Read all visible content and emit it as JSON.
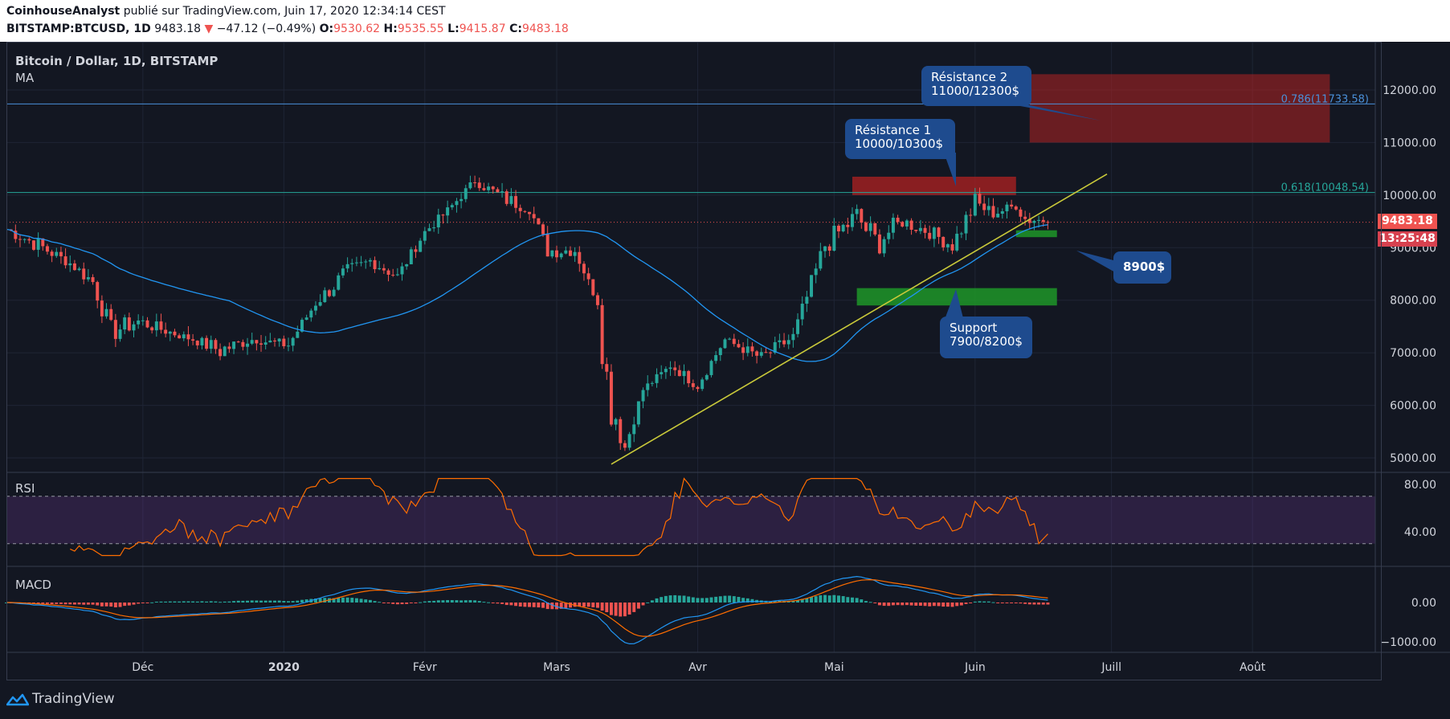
{
  "header": {
    "author": "CoinhouseAnalyst",
    "published": " publié sur TradingView.com, Juin 17, 2020 12:34:14 CEST",
    "symbol": "BITSTAMP:BTCUSD, 1D",
    "price": "9483.18",
    "change": "−47.12 (−0.49%)",
    "o_label": "O:",
    "o": "9530.62",
    "h_label": "H:",
    "h": "9535.55",
    "l_label": "L:",
    "l": "9415.87",
    "c_label": "C:",
    "c": "9483.18"
  },
  "chart_title": "Bitcoin / Dollar, 1D, BITSTAMP",
  "ma_label": "MA",
  "rsi_label": "RSI",
  "macd_label": "MACD",
  "footer": {
    "brand": "TradingView"
  },
  "price_box": {
    "price": "9483.18",
    "countdown": "13:25:48"
  },
  "callouts": {
    "r2": "Résistance 2\n11000/12300$",
    "r1": "Résistance 1\n10000/10300$",
    "support": "Support\n7900/8200$",
    "p8900": "8900$"
  },
  "fib": [
    {
      "label": "0.786(11733.58)",
      "value": 11733.58,
      "color": "#4a90d9"
    },
    {
      "label": "0.618(10048.54)",
      "value": 10048.54,
      "color": "#26a69a"
    }
  ],
  "colors": {
    "up": "#26a69a",
    "down": "#ef5350",
    "ma": "#2196f3",
    "rsi": "#ff6d00",
    "trend": "#c9c93a",
    "bg": "#131722"
  },
  "chart_data": [
    {
      "type": "candlestick",
      "title": "Bitcoin / Dollar, 1D, BITSTAMP",
      "ylim": [
        4800,
        12800
      ],
      "y_ticks": [
        "12000.00",
        "11000.00",
        "10000.00",
        "9000.00",
        "8000.00",
        "7000.00",
        "6000.00",
        "5000.00"
      ],
      "x_ticks": [
        "Déc",
        "2020",
        "Févr",
        "Mars",
        "Avr",
        "Mai",
        "Juin",
        "Juill",
        "Août"
      ],
      "x_range": [
        "2019-11-01",
        "2020-08-28"
      ],
      "x_tick_dates": [
        "2019-12-01",
        "2020-01-01",
        "2020-02-01",
        "2020-03-01",
        "2020-04-01",
        "2020-05-01",
        "2020-06-01",
        "2020-07-01",
        "2020-08-01"
      ],
      "ohlc_points": [
        [
          "2019-11-01",
          9200,
          9500
        ],
        [
          "2019-11-08",
          8800,
          9300
        ],
        [
          "2019-11-15",
          8600,
          8800
        ],
        [
          "2019-11-20",
          8100,
          8600
        ],
        [
          "2019-11-24",
          7000,
          7800
        ],
        [
          "2019-11-30",
          7400,
          7800
        ],
        [
          "2019-12-05",
          7300,
          7600
        ],
        [
          "2019-12-12",
          7200,
          7300
        ],
        [
          "2019-12-18",
          6700,
          7400
        ],
        [
          "2019-12-25",
          7200,
          7300
        ],
        [
          "2020-01-02",
          7000,
          7300
        ],
        [
          "2020-01-08",
          7800,
          8100
        ],
        [
          "2020-01-14",
          8100,
          8800
        ],
        [
          "2020-01-20",
          8600,
          8900
        ],
        [
          "2020-01-26",
          8300,
          8600
        ],
        [
          "2020-02-01",
          9200,
          9400
        ],
        [
          "2020-02-06",
          9600,
          9800
        ],
        [
          "2020-02-12",
          10200,
          10350
        ],
        [
          "2020-02-18",
          9700,
          10200
        ],
        [
          "2020-02-24",
          9600,
          9900
        ],
        [
          "2020-02-28",
          8700,
          9200
        ],
        [
          "2020-03-05",
          8800,
          9100
        ],
        [
          "2020-03-10",
          7900,
          8000
        ],
        [
          "2020-03-12",
          5000,
          7900
        ],
        [
          "2020-03-16",
          5000,
          5400
        ],
        [
          "2020-03-20",
          6200,
          6400
        ],
        [
          "2020-03-26",
          6700,
          6800
        ],
        [
          "2020-04-01",
          6200,
          6600
        ],
        [
          "2020-04-07",
          7200,
          7300
        ],
        [
          "2020-04-15",
          6700,
          7100
        ],
        [
          "2020-04-22",
          7100,
          7500
        ],
        [
          "2020-04-29",
          8700,
          9400
        ],
        [
          "2020-05-06",
          9200,
          10000
        ],
        [
          "2020-05-10",
          8500,
          9700
        ],
        [
          "2020-05-16",
          9300,
          9700
        ],
        [
          "2020-05-22",
          9100,
          9500
        ],
        [
          "2020-05-27",
          8800,
          9300
        ],
        [
          "2020-06-01",
          9500,
          10200
        ],
        [
          "2020-06-05",
          9500,
          9800
        ],
        [
          "2020-06-10",
          9700,
          9900
        ],
        [
          "2020-06-12",
          9300,
          9800
        ],
        [
          "2020-06-17",
          9483.18,
          9530.62
        ]
      ],
      "annotations": [
        "Résistance 1 10000/10300$",
        "Résistance 2 11000/12300$",
        "Support 7900/8200$",
        "8900$"
      ]
    },
    {
      "type": "line",
      "title": "RSI",
      "y_ticks": [
        "80.00",
        "40.00"
      ]
    },
    {
      "type": "bar",
      "title": "MACD",
      "y_ticks": [
        "0.00",
        "−1000.00"
      ]
    }
  ]
}
